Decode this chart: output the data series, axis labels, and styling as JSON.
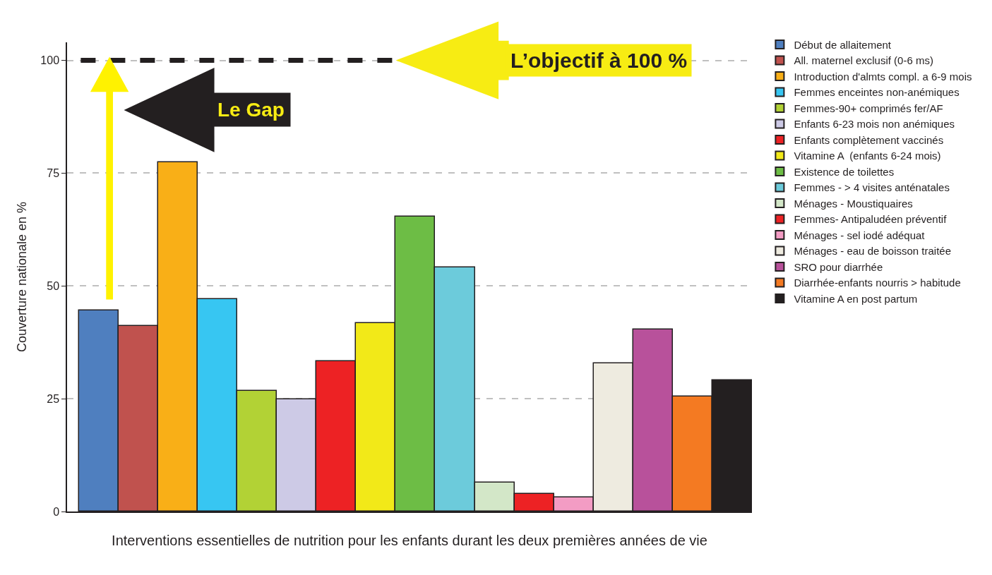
{
  "chart_data": {
    "type": "bar",
    "xlabel": "Interventions essentielles de nutrition pour les enfants durant les deux premières années de vie",
    "ylabel": "Couverture nationale en %",
    "categories": [
      null,
      null,
      null,
      null,
      null,
      null,
      null,
      null,
      null,
      null,
      null,
      null,
      null,
      null,
      null,
      null,
      null
    ],
    "series": [
      {
        "name": "Début de allaitement",
        "color": "#4f7fbf",
        "values": [
          44.5,
          null,
          null,
          null,
          null,
          null,
          null,
          null,
          null,
          null,
          null,
          null,
          null,
          null,
          null,
          null,
          null
        ]
      },
      {
        "name": "All. maternel exclusif (0-6 ms)",
        "color": "#c0524e",
        "values": [
          null,
          41.1,
          null,
          null,
          null,
          null,
          null,
          null,
          null,
          null,
          null,
          null,
          null,
          null,
          null,
          null,
          null
        ]
      },
      {
        "name": "Introduction d'almts compl. a 6-9 mois",
        "color": "#f9af17",
        "values": [
          null,
          null,
          77.4,
          null,
          null,
          null,
          null,
          null,
          null,
          null,
          null,
          null,
          null,
          null,
          null,
          null,
          null
        ]
      },
      {
        "name": "Femmes enceintes non-anémiques",
        "color": "#37c6f2",
        "values": [
          null,
          null,
          null,
          47.0,
          null,
          null,
          null,
          null,
          null,
          null,
          null,
          null,
          null,
          null,
          null,
          null,
          null
        ]
      },
      {
        "name": "Femmes-90+ comprimés fer/AF",
        "color": "#b2d235",
        "values": [
          null,
          null,
          null,
          null,
          26.8,
          null,
          null,
          null,
          null,
          null,
          null,
          null,
          null,
          null,
          null,
          null,
          null
        ]
      },
      {
        "name": "Enfants 6-23 mois non anémiques",
        "color": "#cdcae6",
        "values": [
          null,
          null,
          null,
          null,
          null,
          24.8,
          null,
          null,
          null,
          null,
          null,
          null,
          null,
          null,
          null,
          null,
          null
        ]
      },
      {
        "name": "Enfants complètement vaccinés",
        "color": "#ed2224",
        "values": [
          null,
          null,
          null,
          null,
          null,
          null,
          33.3,
          null,
          null,
          null,
          null,
          null,
          null,
          null,
          null,
          null,
          null
        ]
      },
      {
        "name": "Vitamine A  (enfants 6-24 mois)",
        "color": "#f2e918",
        "values": [
          null,
          null,
          null,
          null,
          null,
          null,
          null,
          41.7,
          null,
          null,
          null,
          null,
          null,
          null,
          null,
          null,
          null
        ]
      },
      {
        "name": "Existence de toilettes",
        "color": "#6dbd45",
        "values": [
          null,
          null,
          null,
          null,
          null,
          null,
          null,
          null,
          65.4,
          null,
          null,
          null,
          null,
          null,
          null,
          null,
          null
        ]
      },
      {
        "name": "Femmes - > 4 visites anténatales",
        "color": "#6ccbdb",
        "values": [
          null,
          null,
          null,
          null,
          null,
          null,
          null,
          null,
          null,
          54.1,
          null,
          null,
          null,
          null,
          null,
          null,
          null
        ]
      },
      {
        "name": "Ménages - Moustiquaires",
        "color": "#d3e7c8",
        "values": [
          null,
          null,
          null,
          null,
          null,
          null,
          null,
          null,
          null,
          null,
          6.4,
          null,
          null,
          null,
          null,
          null,
          null
        ]
      },
      {
        "name": "Femmes- Antipaludéen préventif",
        "color": "#ed2224",
        "values": [
          null,
          null,
          null,
          null,
          null,
          null,
          null,
          null,
          null,
          null,
          null,
          3.9,
          null,
          null,
          null,
          null,
          null
        ]
      },
      {
        "name": "Ménages - sel iodé adéquat",
        "color": "#f39cc4",
        "values": [
          null,
          null,
          null,
          null,
          null,
          null,
          null,
          null,
          null,
          null,
          null,
          null,
          3.1,
          null,
          null,
          null,
          null
        ]
      },
      {
        "name": "Ménages - eau de boisson traitée",
        "color": "#eeebe0",
        "values": [
          null,
          null,
          null,
          null,
          null,
          null,
          null,
          null,
          null,
          null,
          null,
          null,
          null,
          32.9,
          null,
          null,
          null
        ]
      },
      {
        "name": "SRO pour diarrhée",
        "color": "#b8519b",
        "values": [
          null,
          null,
          null,
          null,
          null,
          null,
          null,
          null,
          null,
          null,
          null,
          null,
          null,
          null,
          40.4,
          null,
          null
        ]
      },
      {
        "name": "Diarrhée-enfants nourris > habitude",
        "color": "#f47a22",
        "values": [
          null,
          null,
          null,
          null,
          null,
          null,
          null,
          null,
          null,
          null,
          null,
          null,
          null,
          null,
          null,
          25.5,
          null
        ]
      },
      {
        "name": "Vitamine A en post partum",
        "color": "#231f20",
        "values": [
          null,
          null,
          null,
          null,
          null,
          null,
          null,
          null,
          null,
          null,
          null,
          null,
          null,
          null,
          null,
          null,
          29.1
        ]
      }
    ],
    "ylim": [
      0,
      104
    ],
    "yticks": [
      0,
      25,
      50,
      75,
      100
    ],
    "grid": "y",
    "legend": "right",
    "ref_lines": [
      {
        "axis": "y",
        "value": 100,
        "label": "L’objectif à 100 %",
        "color": "#231f20",
        "line_style": "dashed"
      }
    ],
    "annotations": [
      "Le Gap"
    ]
  }
}
